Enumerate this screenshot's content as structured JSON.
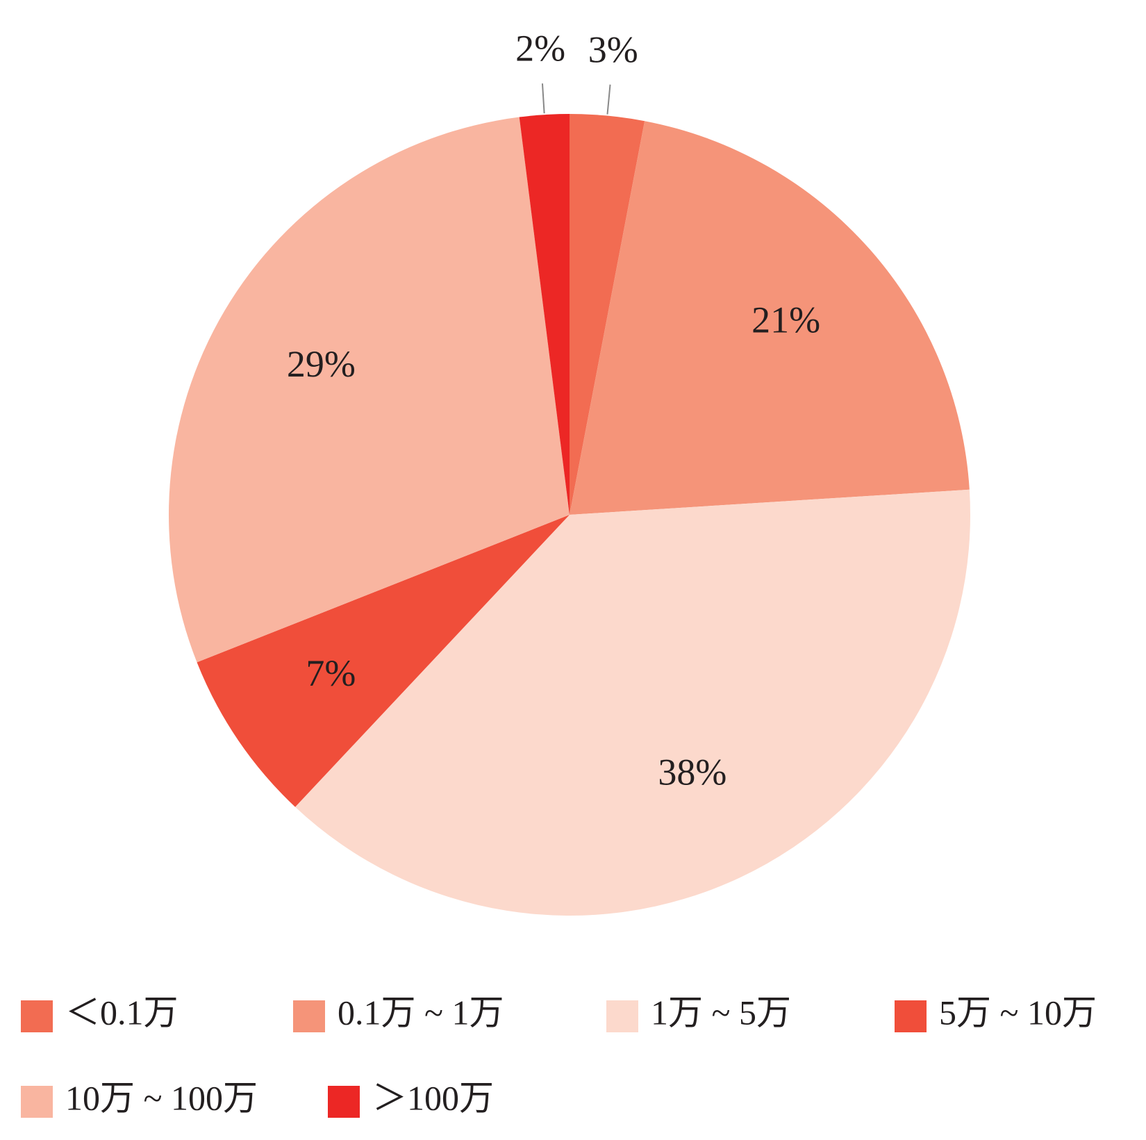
{
  "chart_data": {
    "type": "pie",
    "categories": [
      "＜0.1万",
      "0.1万 ~ 1万",
      "1万 ~ 5万",
      "5万 ~ 10万",
      "10万 ~ 100万",
      "＞100万"
    ],
    "values": [
      3,
      21,
      38,
      7,
      29,
      2
    ],
    "value_labels": [
      "3%",
      "21%",
      "38%",
      "7%",
      "29%",
      "2%"
    ],
    "colors": [
      "#f26c52",
      "#f59479",
      "#fcd9cc",
      "#f04e3a",
      "#f9b5a0",
      "#ec2725"
    ]
  }
}
